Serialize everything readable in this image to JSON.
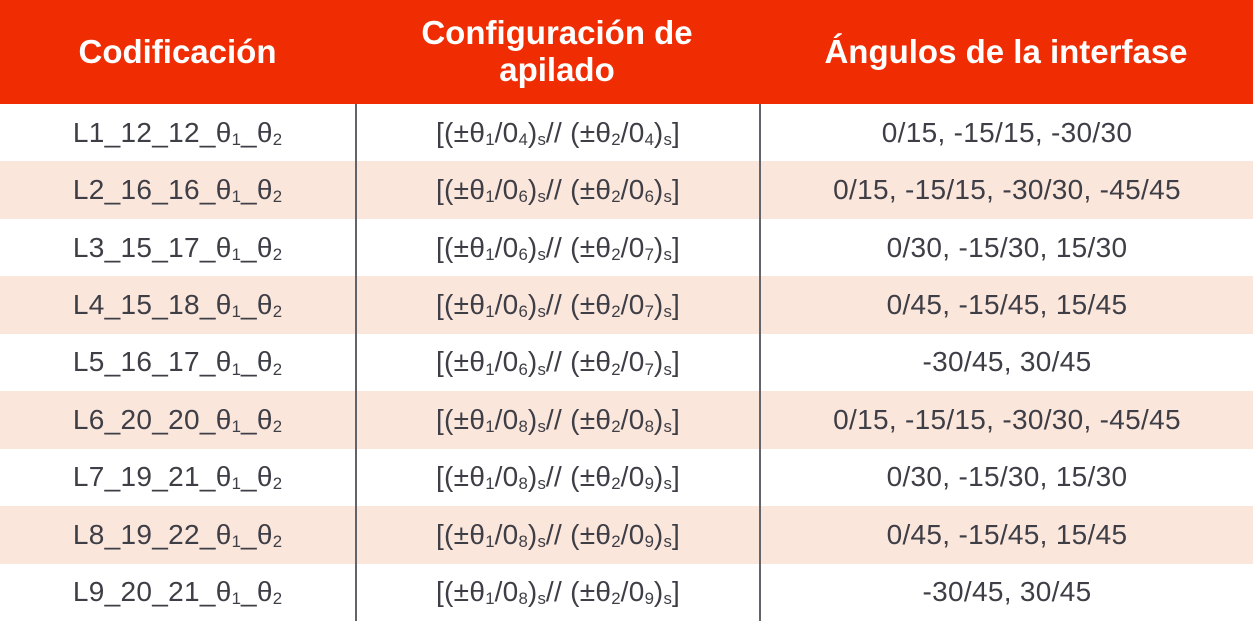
{
  "table": {
    "columns": [
      {
        "label": "Codificación"
      },
      {
        "label": "Configuración de apilado"
      },
      {
        "label": "Ángulos de la interfase"
      }
    ],
    "rows": [
      {
        "code": "L1_12_12_θ~1~_θ~2~",
        "config": "[(±θ~1~/0~4~)~s~ // (±θ~2~/0~4~)~s~]",
        "angles": "0/15, -15/15, -30/30"
      },
      {
        "code": "L2_16_16_θ~1~_θ~2~",
        "config": "[(±θ~1~/0~6~)~s~ // (±θ~2~/0~6~)~s~]",
        "angles": "0/15, -15/15, -30/30, -45/45"
      },
      {
        "code": "L3_15_17_θ~1~_θ~2~",
        "config": "[(±θ~1~/0~6~)~s~ // (±θ~2~/0~7~)~s~]",
        "angles": "0/30, -15/30, 15/30"
      },
      {
        "code": "L4_15_18_θ~1~_θ~2~",
        "config": "[(±θ~1~/0~6~)~s~ // (±θ~2~/0~7~)~s~]",
        "angles": "0/45, -15/45, 15/45"
      },
      {
        "code": "L5_16_17_θ~1~_θ~2~",
        "config": "[(±θ~1~/0~6~)~s~ // (±θ~2~/0~7~)~s~]",
        "angles": "-30/45, 30/45"
      },
      {
        "code": "L6_20_20_θ~1~_θ~2~",
        "config": "[(±θ~1~/0~8~)~s~ // (±θ~2~/0~8~)~s~]",
        "angles": "0/15, -15/15, -30/30, -45/45"
      },
      {
        "code": "L7_19_21_θ~1~_θ~2~",
        "config": "[(±θ~1~/0~8~)~s~ // (±θ~2~/0~9~)~s~]",
        "angles": "0/30, -15/30, 15/30"
      },
      {
        "code": "L8_19_22_θ~1~_θ~2~",
        "config": "[(±θ~1~/0~8~)~s~ // (±θ~2~/0~9~)~s~]",
        "angles": "0/45, -15/45, 15/45"
      },
      {
        "code": "L9_20_21_θ~1~_θ~2~",
        "config": "[(±θ~1~/0~8~)~s~ // (±θ~2~/0~9~)~s~]",
        "angles": "-30/45, 30/45"
      }
    ],
    "colors": {
      "header_bg": "#F02D02",
      "header_text": "#FFFFFF",
      "row_bg": "#FFFFFF",
      "row_alt_bg": "#FBE6DC",
      "body_text": "#3E3E46",
      "divider": "#63646A"
    }
  }
}
